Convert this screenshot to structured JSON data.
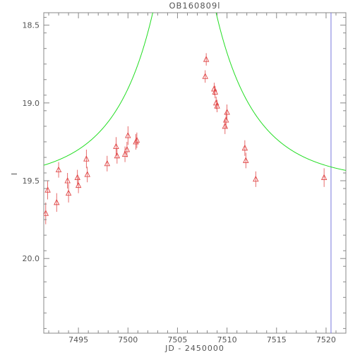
{
  "chart_data": {
    "type": "scatter",
    "title": "OB160809l",
    "xlabel": "JD - 2450000",
    "ylabel": "I",
    "xlim": [
      7491.5,
      7522.0
    ],
    "ylim": [
      20.48,
      18.42
    ],
    "y_inverted": true,
    "grid": false,
    "legend": "none",
    "x_ticks": [
      7495,
      7500,
      7505,
      7510,
      7515,
      7520
    ],
    "x_tick_labels": [
      "7495",
      "7500",
      "7505",
      "7510",
      "7515",
      "7520"
    ],
    "y_ticks": [
      18.5,
      19.0,
      19.5,
      20.0
    ],
    "y_tick_labels": [
      "18.5",
      "19.0",
      "19.5",
      "20.0"
    ],
    "colors": {
      "data": "#e04848",
      "model": "#22dd22",
      "marker_line": "#7777dd",
      "axes": "#888888"
    },
    "vertical_marker_x": 7520.5,
    "model": {
      "t0": 7505.7,
      "u0": 0.12,
      "tE": 8.7,
      "m_base": 19.51
    },
    "series": [
      {
        "marker": "triangle",
        "points": [
          {
            "x": 7491.7,
            "y": 19.71,
            "err": 0.07
          },
          {
            "x": 7491.9,
            "y": 19.56,
            "err": 0.06
          },
          {
            "x": 7492.8,
            "y": 19.64,
            "err": 0.06
          },
          {
            "x": 7493.0,
            "y": 19.43,
            "err": 0.05
          },
          {
            "x": 7493.9,
            "y": 19.5,
            "err": 0.05
          },
          {
            "x": 7494.0,
            "y": 19.58,
            "err": 0.06
          },
          {
            "x": 7494.9,
            "y": 19.48,
            "err": 0.05
          },
          {
            "x": 7495.0,
            "y": 19.53,
            "err": 0.05
          },
          {
            "x": 7495.8,
            "y": 19.36,
            "err": 0.06
          },
          {
            "x": 7495.9,
            "y": 19.46,
            "err": 0.05
          },
          {
            "x": 7497.9,
            "y": 19.39,
            "err": 0.05
          },
          {
            "x": 7498.8,
            "y": 19.28,
            "err": 0.06
          },
          {
            "x": 7498.9,
            "y": 19.34,
            "err": 0.05
          },
          {
            "x": 7499.7,
            "y": 19.33,
            "err": 0.05
          },
          {
            "x": 7499.9,
            "y": 19.3,
            "err": 0.05
          },
          {
            "x": 7500.0,
            "y": 19.21,
            "err": 0.06
          },
          {
            "x": 7500.8,
            "y": 19.25,
            "err": 0.05
          },
          {
            "x": 7500.9,
            "y": 19.24,
            "err": 0.05
          },
          {
            "x": 7507.8,
            "y": 18.83,
            "err": 0.04
          },
          {
            "x": 7507.9,
            "y": 18.72,
            "err": 0.04
          },
          {
            "x": 7508.7,
            "y": 18.91,
            "err": 0.04
          },
          {
            "x": 7508.8,
            "y": 18.93,
            "err": 0.04
          },
          {
            "x": 7508.9,
            "y": 19.0,
            "err": 0.04
          },
          {
            "x": 7509.0,
            "y": 19.02,
            "err": 0.04
          },
          {
            "x": 7509.8,
            "y": 19.15,
            "err": 0.05
          },
          {
            "x": 7509.9,
            "y": 19.11,
            "err": 0.05
          },
          {
            "x": 7510.0,
            "y": 19.06,
            "err": 0.05
          },
          {
            "x": 7511.8,
            "y": 19.29,
            "err": 0.05
          },
          {
            "x": 7511.9,
            "y": 19.37,
            "err": 0.05
          },
          {
            "x": 7512.9,
            "y": 19.49,
            "err": 0.05
          },
          {
            "x": 7519.8,
            "y": 19.48,
            "err": 0.06
          }
        ]
      }
    ]
  }
}
